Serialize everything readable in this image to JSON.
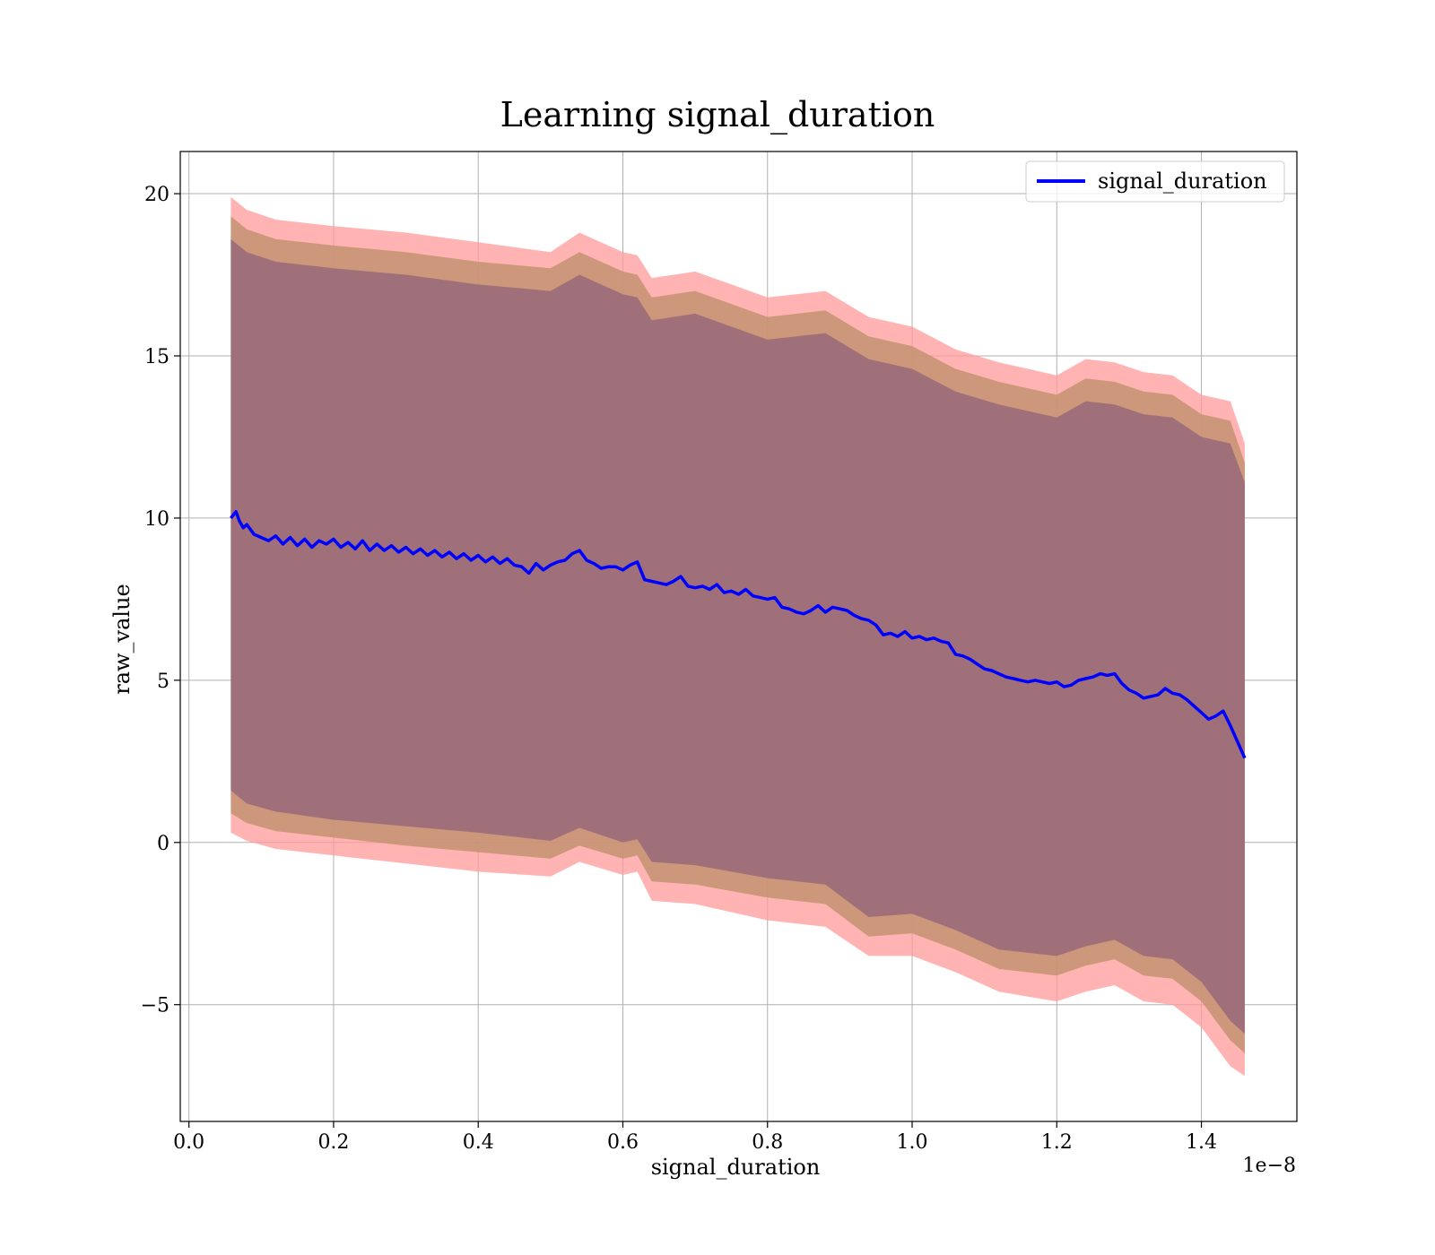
{
  "chart_data": {
    "type": "line",
    "title": "Learning signal_duration",
    "xlabel": "signal_duration",
    "ylabel": "raw_value",
    "x_offset_label": "1e−8",
    "xlim": [
      -0.012,
      1.532
    ],
    "ylim": [
      -8.6,
      21.3
    ],
    "x_ticks": [
      0.0,
      0.2,
      0.4,
      0.6,
      0.8,
      1.0,
      1.2,
      1.4
    ],
    "x_tick_labels": [
      "0.0",
      "0.2",
      "0.4",
      "0.6",
      "0.8",
      "1.0",
      "1.2",
      "1.4"
    ],
    "y_ticks": [
      -5,
      0,
      5,
      10,
      15,
      20
    ],
    "y_tick_labels": [
      "−5",
      "0",
      "5",
      "10",
      "15",
      "20"
    ],
    "grid": true,
    "legend_position": "top-right",
    "colors": {
      "line": "#0000ff",
      "outer_band": "#ff9999",
      "middle_band": "#c49271",
      "inner_band": "#a0707a"
    },
    "series": [
      {
        "name": "signal_duration",
        "x": [
          0.058,
          0.065,
          0.07,
          0.075,
          0.08,
          0.09,
          0.1,
          0.11,
          0.12,
          0.13,
          0.14,
          0.15,
          0.16,
          0.17,
          0.18,
          0.19,
          0.2,
          0.21,
          0.22,
          0.23,
          0.24,
          0.25,
          0.26,
          0.27,
          0.28,
          0.29,
          0.3,
          0.31,
          0.32,
          0.33,
          0.34,
          0.35,
          0.36,
          0.37,
          0.38,
          0.39,
          0.4,
          0.41,
          0.42,
          0.43,
          0.44,
          0.45,
          0.46,
          0.47,
          0.48,
          0.49,
          0.5,
          0.51,
          0.52,
          0.53,
          0.54,
          0.55,
          0.56,
          0.57,
          0.58,
          0.59,
          0.6,
          0.61,
          0.62,
          0.63,
          0.64,
          0.65,
          0.66,
          0.67,
          0.68,
          0.69,
          0.7,
          0.71,
          0.72,
          0.73,
          0.74,
          0.75,
          0.76,
          0.77,
          0.78,
          0.79,
          0.8,
          0.81,
          0.82,
          0.83,
          0.84,
          0.85,
          0.86,
          0.87,
          0.88,
          0.89,
          0.9,
          0.91,
          0.92,
          0.93,
          0.94,
          0.95,
          0.96,
          0.97,
          0.98,
          0.99,
          1.0,
          1.01,
          1.02,
          1.03,
          1.04,
          1.05,
          1.06,
          1.07,
          1.08,
          1.09,
          1.1,
          1.11,
          1.12,
          1.13,
          1.14,
          1.15,
          1.16,
          1.17,
          1.18,
          1.19,
          1.2,
          1.21,
          1.22,
          1.23,
          1.24,
          1.25,
          1.26,
          1.27,
          1.28,
          1.29,
          1.3,
          1.31,
          1.32,
          1.33,
          1.34,
          1.35,
          1.36,
          1.37,
          1.38,
          1.39,
          1.4,
          1.41,
          1.42,
          1.43,
          1.44,
          1.45,
          1.46
        ],
        "y": [
          10.0,
          10.2,
          9.9,
          9.7,
          9.8,
          9.5,
          9.4,
          9.3,
          9.45,
          9.2,
          9.4,
          9.15,
          9.35,
          9.1,
          9.3,
          9.2,
          9.35,
          9.1,
          9.25,
          9.05,
          9.3,
          9.0,
          9.2,
          9.0,
          9.15,
          8.95,
          9.1,
          8.9,
          9.05,
          8.85,
          9.0,
          8.8,
          8.95,
          8.75,
          8.9,
          8.7,
          8.85,
          8.65,
          8.8,
          8.6,
          8.75,
          8.55,
          8.5,
          8.3,
          8.6,
          8.4,
          8.55,
          8.65,
          8.7,
          8.9,
          9.0,
          8.7,
          8.6,
          8.45,
          8.5,
          8.5,
          8.4,
          8.55,
          8.65,
          8.1,
          8.05,
          8.0,
          7.95,
          8.05,
          8.2,
          7.9,
          7.85,
          7.9,
          7.8,
          7.95,
          7.7,
          7.75,
          7.65,
          7.8,
          7.6,
          7.55,
          7.5,
          7.55,
          7.25,
          7.2,
          7.1,
          7.05,
          7.15,
          7.3,
          7.1,
          7.25,
          7.2,
          7.15,
          7.0,
          6.9,
          6.85,
          6.7,
          6.4,
          6.45,
          6.35,
          6.5,
          6.3,
          6.35,
          6.25,
          6.3,
          6.2,
          6.15,
          5.8,
          5.75,
          5.65,
          5.5,
          5.35,
          5.3,
          5.2,
          5.1,
          5.05,
          5.0,
          4.95,
          5.0,
          4.95,
          4.9,
          4.95,
          4.8,
          4.85,
          5.0,
          5.05,
          5.1,
          5.2,
          5.15,
          5.2,
          4.9,
          4.7,
          4.6,
          4.45,
          4.5,
          4.55,
          4.75,
          4.6,
          4.55,
          4.4,
          4.2,
          4.0,
          3.8,
          3.9,
          4.05,
          3.6,
          3.1,
          2.6
        ]
      }
    ],
    "bands": [
      {
        "x": [
          0.058,
          0.08,
          0.12,
          0.2,
          0.3,
          0.4,
          0.5,
          0.54,
          0.6,
          0.62,
          0.64,
          0.7,
          0.8,
          0.88,
          0.94,
          1.0,
          1.06,
          1.12,
          1.2,
          1.24,
          1.28,
          1.32,
          1.36,
          1.4,
          1.44,
          1.46
        ],
        "lower": [
          0.3,
          0.05,
          -0.2,
          -0.4,
          -0.65,
          -0.9,
          -1.05,
          -0.6,
          -1.0,
          -0.9,
          -1.8,
          -1.9,
          -2.4,
          -2.6,
          -3.5,
          -3.5,
          -4.0,
          -4.6,
          -4.9,
          -4.6,
          -4.4,
          -4.9,
          -5.0,
          -5.7,
          -6.9,
          -7.2
        ],
        "upper": [
          19.9,
          19.5,
          19.2,
          19.0,
          18.8,
          18.5,
          18.2,
          18.8,
          18.2,
          18.1,
          17.4,
          17.6,
          16.8,
          17.0,
          16.2,
          15.9,
          15.2,
          14.8,
          14.4,
          14.9,
          14.8,
          14.5,
          14.4,
          13.8,
          13.6,
          12.3
        ]
      },
      {
        "x": [
          0.058,
          0.08,
          0.12,
          0.2,
          0.3,
          0.4,
          0.5,
          0.54,
          0.6,
          0.62,
          0.64,
          0.7,
          0.8,
          0.88,
          0.94,
          1.0,
          1.06,
          1.12,
          1.2,
          1.24,
          1.28,
          1.32,
          1.36,
          1.4,
          1.44,
          1.46
        ],
        "lower": [
          0.9,
          0.6,
          0.35,
          0.15,
          -0.1,
          -0.3,
          -0.5,
          -0.1,
          -0.5,
          -0.4,
          -1.2,
          -1.3,
          -1.7,
          -1.9,
          -2.9,
          -2.8,
          -3.3,
          -3.9,
          -4.1,
          -3.8,
          -3.6,
          -4.1,
          -4.2,
          -4.9,
          -6.1,
          -6.5
        ],
        "upper": [
          19.3,
          18.9,
          18.6,
          18.4,
          18.2,
          17.9,
          17.7,
          18.2,
          17.6,
          17.5,
          16.8,
          17.0,
          16.2,
          16.4,
          15.6,
          15.3,
          14.6,
          14.2,
          13.8,
          14.3,
          14.2,
          13.9,
          13.8,
          13.2,
          13.0,
          11.7
        ]
      },
      {
        "x": [
          0.058,
          0.08,
          0.12,
          0.2,
          0.3,
          0.4,
          0.5,
          0.54,
          0.6,
          0.62,
          0.64,
          0.7,
          0.8,
          0.88,
          0.94,
          1.0,
          1.06,
          1.12,
          1.2,
          1.24,
          1.28,
          1.32,
          1.36,
          1.4,
          1.44,
          1.46
        ],
        "lower": [
          1.6,
          1.2,
          0.95,
          0.7,
          0.5,
          0.3,
          0.05,
          0.45,
          0.0,
          0.1,
          -0.6,
          -0.7,
          -1.1,
          -1.3,
          -2.3,
          -2.2,
          -2.7,
          -3.3,
          -3.5,
          -3.2,
          -3.0,
          -3.5,
          -3.6,
          -4.3,
          -5.5,
          -5.9
        ],
        "upper": [
          18.6,
          18.2,
          17.9,
          17.7,
          17.5,
          17.2,
          17.0,
          17.5,
          16.9,
          16.8,
          16.1,
          16.3,
          15.5,
          15.7,
          14.9,
          14.6,
          13.9,
          13.5,
          13.1,
          13.6,
          13.5,
          13.2,
          13.1,
          12.5,
          12.3,
          11.1
        ]
      }
    ]
  }
}
